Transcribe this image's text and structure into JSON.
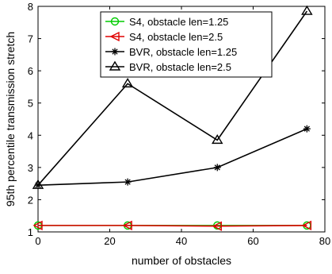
{
  "chart_data": {
    "type": "line",
    "title": "",
    "xlabel": "number of obstacles",
    "ylabel": "95th percentile transmission stretch",
    "xlim": [
      0,
      80
    ],
    "ylim": [
      1,
      8
    ],
    "xticks": [
      0,
      20,
      40,
      60,
      80
    ],
    "yticks": [
      1,
      2,
      3,
      4,
      5,
      6,
      7,
      8
    ],
    "grid": false,
    "legend_position": "top-center",
    "x": [
      0,
      25,
      50,
      75
    ],
    "series": [
      {
        "name": "S4, obstacle len=1.25",
        "values": [
          1.2,
          1.2,
          1.2,
          1.2
        ],
        "color": "#00cc00",
        "marker": "circle"
      },
      {
        "name": "S4, obstacle len=2.5",
        "values": [
          1.2,
          1.2,
          1.18,
          1.2
        ],
        "color": "#e00000",
        "marker": "triangle-left"
      },
      {
        "name": "BVR, obstacle len=1.25",
        "values": [
          2.45,
          2.55,
          3.0,
          4.2
        ],
        "color": "#000000",
        "marker": "star"
      },
      {
        "name": "BVR, obstacle len=2.5",
        "values": [
          2.45,
          5.6,
          3.85,
          7.85
        ],
        "color": "#000000",
        "marker": "triangle-up"
      }
    ]
  }
}
